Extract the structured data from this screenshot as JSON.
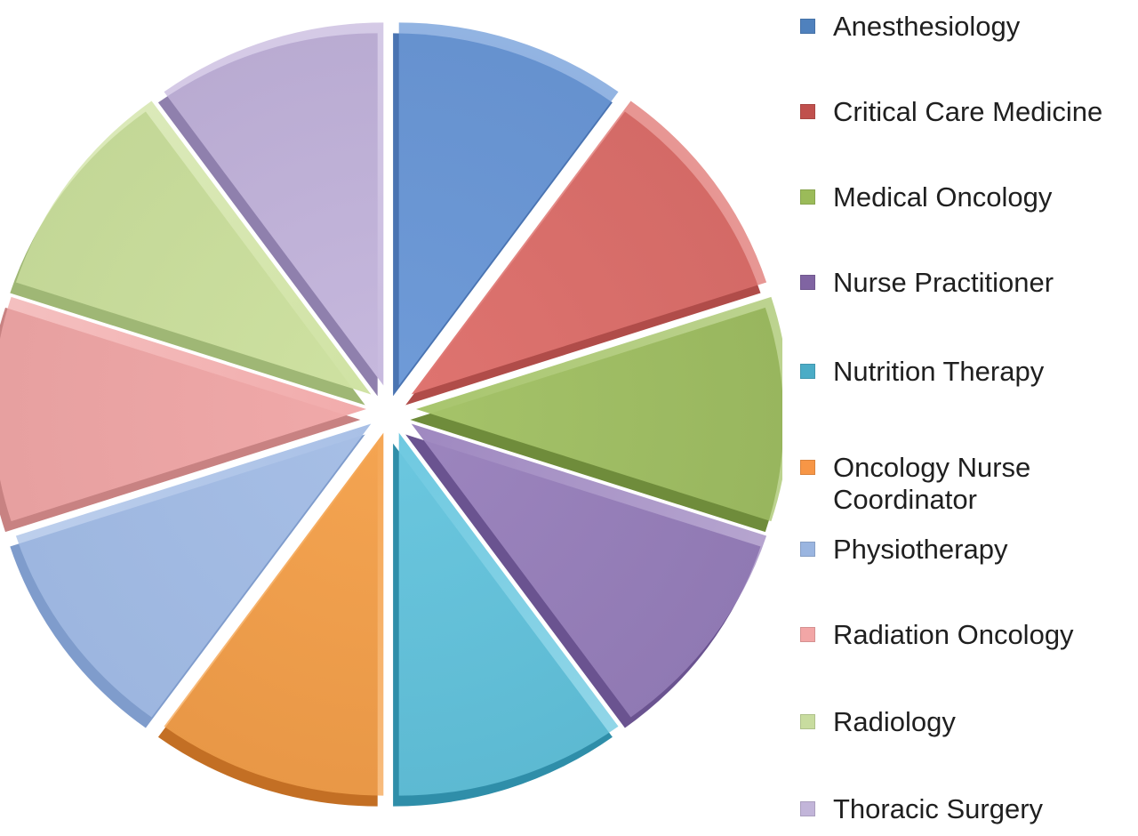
{
  "chart_data": {
    "type": "pie",
    "title": "",
    "exploded": true,
    "legend_position": "right",
    "series": [
      {
        "name": "",
        "values": [
          1,
          1,
          1,
          1,
          1,
          1,
          1,
          1,
          1,
          1
        ]
      }
    ],
    "categories": [
      "Anesthesiology",
      "Critical Care Medicine",
      "Medical Oncology",
      "Nurse Practitioner",
      "Nutrition Therapy",
      "Oncology Nurse Coordinator",
      "Physiotherapy",
      "Radiation Oncology",
      "Radiology",
      "Thoracic Surgery"
    ],
    "legend_lines": [
      [
        "Anesthesiology"
      ],
      [
        "Critical Care Medicine"
      ],
      [
        "Medical Oncology"
      ],
      [
        "Nurse Practitioner"
      ],
      [
        "Nutrition Therapy"
      ],
      [
        "Oncology Nurse",
        "Coordinator"
      ],
      [
        "Physiotherapy"
      ],
      [
        "Radiation Oncology"
      ],
      [
        "Radiology"
      ],
      [
        "Thoracic Surgery"
      ]
    ],
    "colors": [
      "#6f9bd8",
      "#df7470",
      "#a6c46a",
      "#9d86bf",
      "#6cc8e0",
      "#f5a552",
      "#a7bfe6",
      "#f1aaaa",
      "#cfe2a2",
      "#c7b9de"
    ],
    "dark_colors": [
      "#4a74b2",
      "#b04c49",
      "#6f8c3b",
      "#6a5390",
      "#2f8ea9",
      "#c36f24",
      "#7f9ccc",
      "#c88282",
      "#9fb775",
      "#8f80ad"
    ],
    "legend_swatch_colors": [
      "#4f81bd",
      "#c0504d",
      "#9bbb59",
      "#8064a2",
      "#4bacc6",
      "#f79646",
      "#9ab5e0",
      "#f2a6a6",
      "#c8dc9f",
      "#c2b5d9"
    ]
  }
}
